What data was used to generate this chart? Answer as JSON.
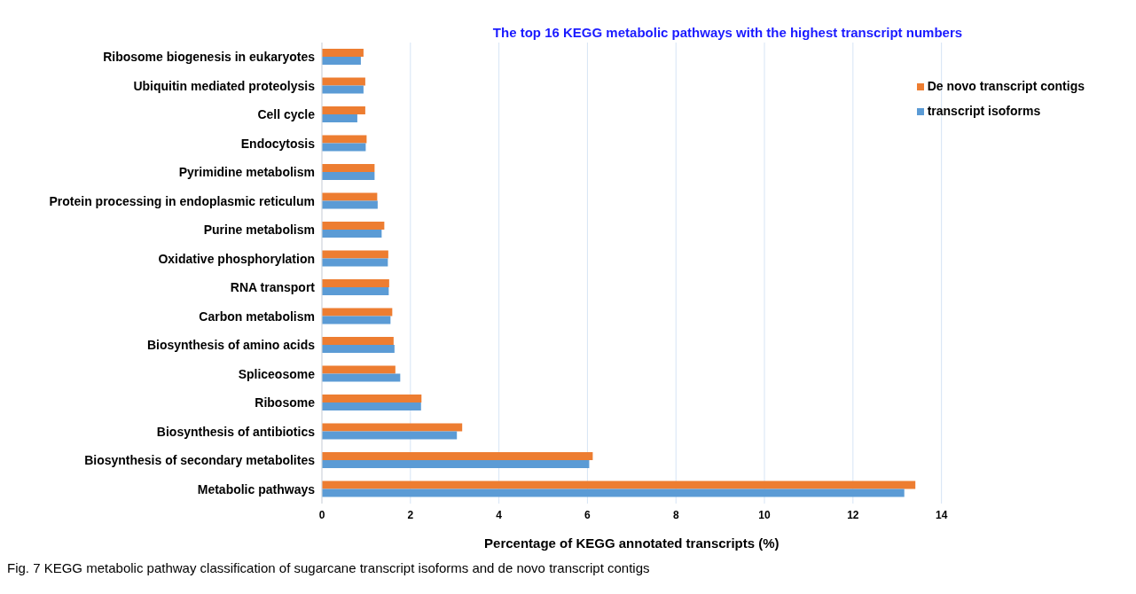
{
  "chart_data": {
    "type": "bar",
    "orientation": "horizontal",
    "title": "The top 16 KEGG metabolic pathways with the highest transcript numbers",
    "xlabel": "Percentage of KEGG annotated transcripts (%)",
    "categories": [
      "Ribosome biogenesis in eukaryotes",
      "Ubiquitin mediated proteolysis",
      "Cell cycle",
      "Endocytosis",
      "Pyrimidine metabolism",
      "Protein processing in endoplasmic reticulum",
      "Purine metabolism",
      "Oxidative phosphorylation",
      "RNA transport",
      "Carbon metabolism",
      "Biosynthesis of amino acids",
      "Spliceosome",
      "Ribosome",
      "Biosynthesis of antibiotics",
      "Biosynthesis of secondary metabolites",
      "Metabolic pathways"
    ],
    "series": [
      {
        "name": "De novo transcript contigs",
        "color": "#ed7d31",
        "values": [
          0.94,
          0.98,
          0.98,
          1.01,
          1.19,
          1.25,
          1.41,
          1.5,
          1.52,
          1.59,
          1.62,
          1.66,
          2.25,
          3.17,
          6.12,
          13.41
        ]
      },
      {
        "name": "transcript isoforms",
        "color": "#5b9bd5",
        "values": [
          0.88,
          0.94,
          0.8,
          0.99,
          1.19,
          1.26,
          1.35,
          1.49,
          1.51,
          1.55,
          1.64,
          1.77,
          2.24,
          3.05,
          6.04,
          13.16
        ]
      }
    ],
    "xlim": [
      0,
      14
    ],
    "xticks": [
      0,
      2,
      4,
      6,
      8,
      10,
      12,
      14
    ],
    "grid": "x",
    "legend": "top right",
    "annotations": [
      "Fig. 7 KEGG metabolic pathway classification of sugarcane transcript isoforms and de novo transcript contigs"
    ]
  }
}
